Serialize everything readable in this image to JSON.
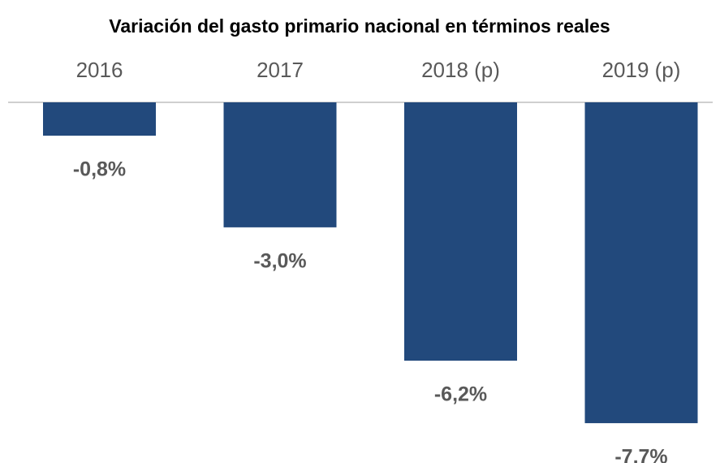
{
  "chart_data": {
    "type": "bar",
    "title": "Variación del gasto primario nacional en términos reales",
    "categories": [
      "2016",
      "2017",
      "2018 (p)",
      "2019 (p)"
    ],
    "values": [
      -0.8,
      -3.0,
      -6.2,
      -7.7
    ],
    "value_labels": [
      "-0,8%",
      "-3,0%",
      "-6,2%",
      "-7,7%"
    ],
    "color": "#22497c",
    "ylim": [
      -8.5,
      0
    ]
  }
}
